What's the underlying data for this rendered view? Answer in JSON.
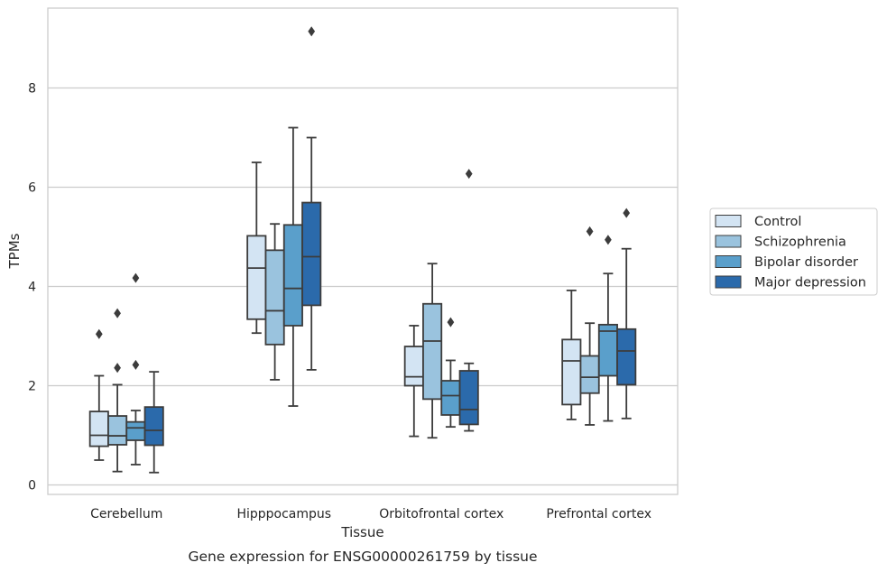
{
  "chart_data": {
    "type": "boxplot",
    "caption": "Gene expression for ENSG00000261759 by tissue",
    "xlabel": "Tissue",
    "ylabel": "TPMs",
    "ylim": [
      -0.2,
      9.65
    ],
    "yticks": [
      "0",
      "2",
      "4",
      "6",
      "8"
    ],
    "grid": "horizontal",
    "legend_position": "right",
    "categories": [
      "Cerebellum",
      "Hipppocampus",
      "Orbitofrontal cortex",
      "Prefrontal cortex"
    ],
    "series": [
      {
        "name": "Control",
        "color": "#d3e4f3",
        "boxes": [
          {
            "whislo": 0.5,
            "q1": 0.78,
            "med": 1.0,
            "q3": 1.48,
            "whishi": 2.2,
            "fliers": [
              3.04
            ]
          },
          {
            "whislo": 3.06,
            "q1": 3.34,
            "med": 4.37,
            "q3": 5.02,
            "whishi": 6.5,
            "fliers": []
          },
          {
            "whislo": 0.98,
            "q1": 2.0,
            "med": 2.18,
            "q3": 2.79,
            "whishi": 3.21,
            "fliers": []
          },
          {
            "whislo": 1.32,
            "q1": 1.62,
            "med": 2.5,
            "q3": 2.93,
            "whishi": 3.92,
            "fliers": []
          }
        ]
      },
      {
        "name": "Schizophrenia",
        "color": "#9ac3de",
        "boxes": [
          {
            "whislo": 0.27,
            "q1": 0.81,
            "med": 0.99,
            "q3": 1.39,
            "whishi": 2.02,
            "fliers": [
              2.36,
              3.46
            ]
          },
          {
            "whislo": 2.12,
            "q1": 2.83,
            "med": 3.51,
            "q3": 4.73,
            "whishi": 5.26,
            "fliers": []
          },
          {
            "whislo": 0.95,
            "q1": 1.73,
            "med": 2.9,
            "q3": 3.65,
            "whishi": 4.46,
            "fliers": []
          },
          {
            "whislo": 1.21,
            "q1": 1.85,
            "med": 2.17,
            "q3": 2.6,
            "whishi": 3.26,
            "fliers": [
              5.11
            ]
          }
        ]
      },
      {
        "name": "Bipolar disorder",
        "color": "#5a9fcb",
        "boxes": [
          {
            "whislo": 0.41,
            "q1": 0.9,
            "med": 1.15,
            "q3": 1.27,
            "whishi": 1.5,
            "fliers": [
              2.42,
              4.17
            ]
          },
          {
            "whislo": 1.59,
            "q1": 3.21,
            "med": 3.96,
            "q3": 5.24,
            "whishi": 7.2,
            "fliers": []
          },
          {
            "whislo": 1.17,
            "q1": 1.41,
            "med": 1.8,
            "q3": 2.1,
            "whishi": 2.51,
            "fliers": [
              3.28
            ]
          },
          {
            "whislo": 1.29,
            "q1": 2.2,
            "med": 3.1,
            "q3": 3.23,
            "whishi": 4.26,
            "fliers": [
              4.94
            ]
          }
        ]
      },
      {
        "name": "Major depression",
        "color": "#2b6aab",
        "boxes": [
          {
            "whislo": 0.25,
            "q1": 0.8,
            "med": 1.1,
            "q3": 1.57,
            "whishi": 2.28,
            "fliers": []
          },
          {
            "whislo": 2.32,
            "q1": 3.62,
            "med": 4.6,
            "q3": 5.69,
            "whishi": 7.0,
            "fliers": [
              9.14
            ]
          },
          {
            "whislo": 1.09,
            "q1": 1.22,
            "med": 1.52,
            "q3": 2.3,
            "whishi": 2.45,
            "fliers": [
              6.27
            ]
          },
          {
            "whislo": 1.34,
            "q1": 2.02,
            "med": 2.7,
            "q3": 3.14,
            "whishi": 4.76,
            "fliers": [
              5.48
            ]
          }
        ]
      }
    ]
  },
  "colors": {
    "stroke": "#3c3c3c",
    "grid": "#cccccc",
    "frame": "#cccccc",
    "text": "#262626"
  }
}
